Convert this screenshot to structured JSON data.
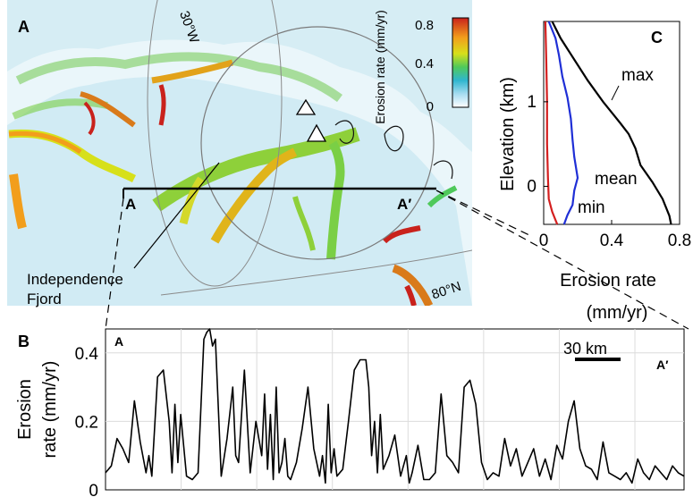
{
  "figure": {
    "panel_labels": {
      "a": "A",
      "b": "B",
      "c": "C"
    }
  },
  "map": {
    "colorbar": {
      "title": "Erosion rate (mm/yr)",
      "ticks": [
        "0.8",
        "0.4",
        "0"
      ],
      "colors": [
        "#ffffff",
        "#a6dcf0",
        "#2fb6cf",
        "#4fc95b",
        "#d7e01a",
        "#f29e1c",
        "#c9221c"
      ]
    },
    "lat_labels": [
      "80°N"
    ],
    "lon_labels": [
      "30°W"
    ],
    "profile_start": "A",
    "profile_end": "A′",
    "place_label": [
      "Independence",
      "Fjord"
    ]
  },
  "chart_data": [
    {
      "type": "line",
      "panel": "C",
      "xlabel": "Erosion rate",
      "xlabel_unit": "(mm/yr)",
      "ylabel": "Elevation (km)",
      "xlim": [
        0,
        0.8
      ],
      "ylim": [
        -0.45,
        1.95
      ],
      "xticks": [
        "0",
        "0.4",
        "0.8"
      ],
      "yticks": [
        "0",
        "1"
      ],
      "grid": false,
      "series": [
        {
          "name": "max",
          "color": "#000000",
          "points": [
            [
              0.05,
              1.95
            ],
            [
              0.1,
              1.75
            ],
            [
              0.18,
              1.5
            ],
            [
              0.26,
              1.25
            ],
            [
              0.35,
              1.0
            ],
            [
              0.45,
              0.75
            ],
            [
              0.5,
              0.62
            ],
            [
              0.54,
              0.45
            ],
            [
              0.57,
              0.25
            ],
            [
              0.64,
              0.05
            ],
            [
              0.7,
              -0.15
            ],
            [
              0.74,
              -0.35
            ],
            [
              0.75,
              -0.45
            ]
          ]
        },
        {
          "name": "mean",
          "color": "#1f2fd6",
          "points": [
            [
              0.03,
              1.95
            ],
            [
              0.07,
              1.75
            ],
            [
              0.09,
              1.55
            ],
            [
              0.11,
              1.3
            ],
            [
              0.14,
              1.05
            ],
            [
              0.16,
              0.8
            ],
            [
              0.17,
              0.55
            ],
            [
              0.18,
              0.35
            ],
            [
              0.2,
              0.1
            ],
            [
              0.18,
              -0.05
            ],
            [
              0.17,
              -0.22
            ],
            [
              0.14,
              -0.34
            ],
            [
              0.12,
              -0.45
            ]
          ]
        },
        {
          "name": "min",
          "color": "#d41f1f",
          "points": [
            [
              0.01,
              1.95
            ],
            [
              0.015,
              1.5
            ],
            [
              0.02,
              1.0
            ],
            [
              0.02,
              0.5
            ],
            [
              0.025,
              0.1
            ],
            [
              0.03,
              -0.15
            ],
            [
              0.05,
              -0.3
            ],
            [
              0.07,
              -0.4
            ],
            [
              0.08,
              -0.45
            ]
          ]
        }
      ]
    },
    {
      "type": "line",
      "panel": "B",
      "ylabel": "Erosion rate (mm/yr)",
      "ylim": [
        0,
        0.47
      ],
      "yticks": [
        "0",
        "0.2",
        "0.4"
      ],
      "grid": true,
      "start_label": "A",
      "end_label": "A′",
      "scalebar_label": "30 km",
      "series": [
        {
          "name": "",
          "x": [
            0,
            0.01,
            0.02,
            0.03,
            0.04,
            0.05,
            0.06,
            0.07,
            0.075,
            0.08,
            0.09,
            0.1,
            0.11,
            0.115,
            0.12,
            0.125,
            0.13,
            0.14,
            0.15,
            0.16,
            0.17,
            0.175,
            0.18,
            0.185,
            0.19,
            0.2,
            0.21,
            0.22,
            0.225,
            0.23,
            0.24,
            0.25,
            0.26,
            0.27,
            0.275,
            0.28,
            0.285,
            0.29,
            0.295,
            0.3,
            0.305,
            0.31,
            0.315,
            0.32,
            0.33,
            0.34,
            0.35,
            0.36,
            0.37,
            0.375,
            0.38,
            0.385,
            0.39,
            0.395,
            0.4,
            0.41,
            0.42,
            0.43,
            0.44,
            0.45,
            0.455,
            0.46,
            0.465,
            0.47,
            0.475,
            0.48,
            0.49,
            0.5,
            0.51,
            0.52,
            0.525,
            0.53,
            0.54,
            0.55,
            0.56,
            0.57,
            0.58,
            0.59,
            0.6,
            0.61,
            0.62,
            0.63,
            0.64,
            0.65,
            0.66,
            0.67,
            0.68,
            0.69,
            0.7,
            0.71,
            0.72,
            0.73,
            0.74,
            0.75,
            0.76,
            0.77,
            0.78,
            0.79,
            0.8,
            0.81,
            0.82,
            0.83,
            0.84,
            0.85,
            0.86,
            0.87,
            0.88,
            0.89,
            0.9,
            0.91,
            0.92,
            0.93,
            0.94,
            0.95,
            0.96,
            0.97,
            0.98,
            0.99,
            1.0
          ],
          "values": [
            0.05,
            0.07,
            0.15,
            0.12,
            0.08,
            0.26,
            0.14,
            0.05,
            0.1,
            0.04,
            0.33,
            0.35,
            0.2,
            0.05,
            0.25,
            0.08,
            0.22,
            0.04,
            0.03,
            0.05,
            0.44,
            0.46,
            0.47,
            0.42,
            0.44,
            0.04,
            0.15,
            0.3,
            0.1,
            0.08,
            0.35,
            0.05,
            0.2,
            0.1,
            0.28,
            0.06,
            0.22,
            0.03,
            0.3,
            0.05,
            0.08,
            0.15,
            0.04,
            0.03,
            0.08,
            0.18,
            0.3,
            0.12,
            0.04,
            0.1,
            0.02,
            0.25,
            0.05,
            0.12,
            0.04,
            0.06,
            0.2,
            0.35,
            0.38,
            0.38,
            0.3,
            0.1,
            0.2,
            0.05,
            0.22,
            0.06,
            0.1,
            0.16,
            0.04,
            0.1,
            0.02,
            0.05,
            0.13,
            0.03,
            0.03,
            0.05,
            0.28,
            0.1,
            0.08,
            0.05,
            0.3,
            0.32,
            0.25,
            0.08,
            0.03,
            0.05,
            0.04,
            0.15,
            0.07,
            0.12,
            0.04,
            0.08,
            0.12,
            0.04,
            0.09,
            0.03,
            0.13,
            0.09,
            0.2,
            0.26,
            0.12,
            0.07,
            0.06,
            0.03,
            0.14,
            0.05,
            0.04,
            0.03,
            0.05,
            0.02,
            0.09,
            0.05,
            0.03,
            0.07,
            0.05,
            0.03,
            0.07,
            0.05,
            0.04
          ]
        }
      ]
    }
  ]
}
